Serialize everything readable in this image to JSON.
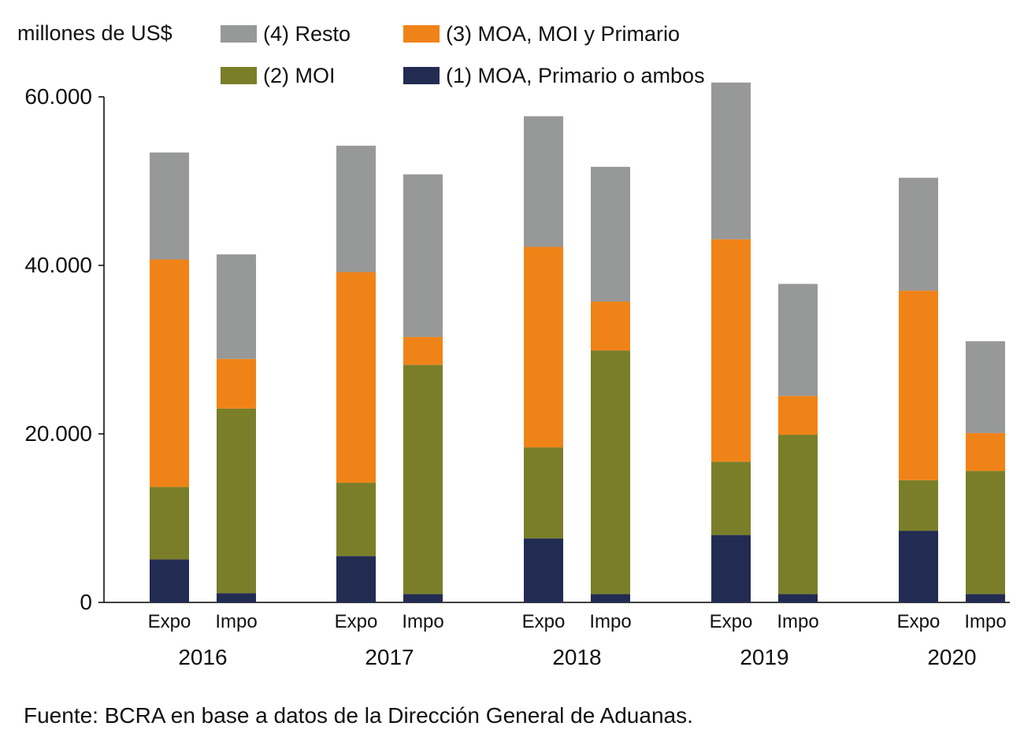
{
  "source": "Fuente: BCRA en base a datos de la Dirección General de Aduanas.",
  "chart_data": {
    "type": "bar",
    "stacked": true,
    "ylabel": "millones de US$",
    "ylim": [
      0,
      60000
    ],
    "yticks": [
      0,
      20000,
      40000,
      60000
    ],
    "ytick_labels": [
      "0",
      "20.000",
      "40.000",
      "60.000"
    ],
    "grid": false,
    "legend_position": "top",
    "legend_order": [
      3,
      2,
      1,
      0
    ],
    "groups": [
      "2016",
      "2017",
      "2018",
      "2019",
      "2020"
    ],
    "categories": [
      "Expo",
      "Impo",
      "Expo",
      "Impo",
      "Expo",
      "Impo",
      "Expo",
      "Impo",
      "Expo",
      "Impo"
    ],
    "series": [
      {
        "name": "(1) MOA, Primario o ambos",
        "color": "#222b52",
        "values": [
          5100,
          1100,
          5500,
          1000,
          7600,
          1000,
          8000,
          1000,
          8500,
          1000
        ]
      },
      {
        "name": "(2) MOI",
        "color": "#7a7e28",
        "values": [
          8600,
          21900,
          8700,
          27200,
          10800,
          28900,
          8700,
          18900,
          6000,
          14600
        ]
      },
      {
        "name": "(3) MOA, MOI y Primario",
        "color": "#f08317",
        "values": [
          27000,
          5900,
          25000,
          3300,
          23800,
          5800,
          26400,
          4600,
          22500,
          4500
        ]
      },
      {
        "name": "(4) Resto",
        "color": "#979898",
        "values": [
          12700,
          12400,
          15000,
          19300,
          15500,
          16000,
          18600,
          13300,
          13400,
          10900
        ]
      }
    ]
  }
}
